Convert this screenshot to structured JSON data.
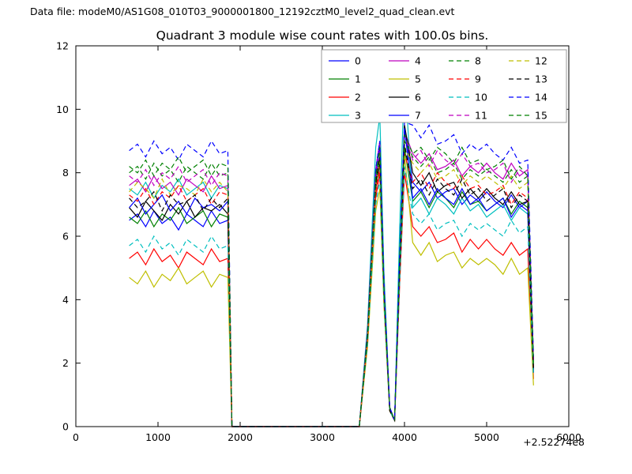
{
  "figure": {
    "datafile_label": "Data file: modeM0/AS1G08_010T03_9000001800_12192cztM0_level2_quad_clean.evt",
    "title": "Quadrant 3 module wise count rates with 100.0s bins."
  },
  "chart_data": {
    "type": "line",
    "title": "Quadrant 3 module wise count rates with 100.0s bins.",
    "xlabel": "",
    "ylabel": "",
    "xlim": [
      0,
      6000
    ],
    "ylim": [
      0,
      12
    ],
    "xticks": [
      0,
      1000,
      2000,
      3000,
      4000,
      5000,
      6000
    ],
    "yticks": [
      0,
      2,
      4,
      6,
      8,
      10,
      12
    ],
    "x_offset": "+2.52274e8",
    "grid": false,
    "legend": {
      "position": "upper right",
      "columns": 4
    },
    "x": [
      650,
      750,
      850,
      950,
      1050,
      1150,
      1250,
      1350,
      1450,
      1550,
      1650,
      1750,
      1850,
      1900,
      2500,
      3100,
      3450,
      3550,
      3650,
      3700,
      3750,
      3820,
      3880,
      3940,
      4000,
      4100,
      4200,
      4300,
      4400,
      4500,
      4600,
      4700,
      4800,
      4900,
      5000,
      5100,
      5200,
      5300,
      5400,
      5500,
      5570
    ],
    "series": [
      {
        "name": "0",
        "color": "#0000ff",
        "dash": false,
        "y": [
          6.5,
          6.7,
          6.3,
          6.8,
          6.4,
          6.6,
          6.2,
          6.7,
          6.5,
          6.3,
          6.8,
          6.4,
          6.5,
          0,
          0,
          0,
          0,
          3.0,
          8.1,
          9.0,
          4.5,
          0.6,
          0.2,
          5.2,
          9.5,
          7.7,
          7.4,
          7.7,
          7.2,
          7.4,
          7.5,
          7.0,
          7.3,
          7.1,
          7.4,
          7.1,
          6.9,
          7.3,
          6.9,
          7.1,
          1.8
        ]
      },
      {
        "name": "1",
        "color": "#008000",
        "dash": false,
        "y": [
          6.6,
          6.4,
          6.8,
          6.3,
          6.7,
          6.5,
          6.9,
          6.4,
          6.6,
          6.8,
          6.3,
          6.7,
          6.6,
          0,
          0,
          0,
          0,
          2.8,
          7.7,
          8.5,
          4.3,
          0.5,
          0.2,
          4.8,
          8.8,
          7.1,
          7.4,
          6.9,
          7.4,
          7.2,
          6.9,
          7.4,
          7.0,
          7.1,
          6.8,
          7.0,
          7.2,
          6.7,
          7.1,
          6.9,
          1.7
        ]
      },
      {
        "name": "2",
        "color": "#ff0000",
        "dash": false,
        "y": [
          5.3,
          5.5,
          5.1,
          5.6,
          5.2,
          5.4,
          5.0,
          5.5,
          5.3,
          5.1,
          5.6,
          5.2,
          5.3,
          0,
          0,
          0,
          0,
          2.6,
          7.2,
          8.0,
          4.0,
          0.5,
          0.2,
          4.4,
          8.0,
          6.3,
          6.0,
          6.3,
          5.8,
          5.9,
          6.1,
          5.5,
          5.9,
          5.6,
          5.9,
          5.6,
          5.4,
          5.8,
          5.4,
          5.6,
          1.5
        ]
      },
      {
        "name": "3",
        "color": "#00bfbf",
        "dash": false,
        "y": [
          7.5,
          7.3,
          7.7,
          7.2,
          7.6,
          7.4,
          7.8,
          7.3,
          7.5,
          7.7,
          7.2,
          7.6,
          7.5,
          0,
          0,
          0,
          0,
          3.2,
          8.8,
          9.8,
          4.9,
          0.6,
          0.2,
          6.2,
          11.2,
          6.9,
          7.2,
          6.7,
          7.2,
          7.0,
          6.7,
          7.2,
          6.8,
          7.0,
          6.6,
          6.8,
          7.0,
          6.5,
          6.9,
          6.7,
          1.9
        ]
      },
      {
        "name": "4",
        "color": "#bf00bf",
        "dash": false,
        "y": [
          7.6,
          7.8,
          7.4,
          7.9,
          7.5,
          7.7,
          7.3,
          7.8,
          7.6,
          7.4,
          7.9,
          7.5,
          7.6,
          0,
          0,
          0,
          0,
          3.0,
          8.1,
          9.0,
          4.5,
          0.6,
          0.2,
          5.1,
          9.3,
          8.6,
          8.3,
          8.6,
          8.1,
          8.2,
          8.4,
          7.9,
          8.2,
          8.0,
          8.3,
          8.0,
          7.8,
          8.3,
          7.9,
          8.1,
          2.0
        ]
      },
      {
        "name": "5",
        "color": "#bfbf00",
        "dash": false,
        "y": [
          4.7,
          4.5,
          4.9,
          4.4,
          4.8,
          4.6,
          5.0,
          4.5,
          4.7,
          4.9,
          4.4,
          4.8,
          4.7,
          0,
          0,
          0,
          0,
          2.5,
          6.8,
          7.5,
          3.8,
          0.5,
          0.2,
          4.7,
          8.6,
          5.8,
          5.4,
          5.8,
          5.2,
          5.4,
          5.5,
          5.0,
          5.3,
          5.1,
          5.3,
          5.1,
          4.8,
          5.3,
          4.8,
          5.0,
          1.3
        ]
      },
      {
        "name": "6",
        "color": "#000000",
        "dash": false,
        "y": [
          6.9,
          6.6,
          7.1,
          6.8,
          6.5,
          7.0,
          6.7,
          7.1,
          6.6,
          6.9,
          6.8,
          7.0,
          6.7,
          0,
          0,
          0,
          0,
          2.8,
          7.5,
          8.3,
          4.2,
          0.5,
          0.2,
          5.2,
          9.5,
          8.0,
          7.6,
          8.0,
          7.4,
          7.6,
          7.7,
          7.2,
          7.5,
          7.2,
          7.5,
          7.2,
          7.0,
          7.4,
          7.0,
          7.1,
          1.8
        ]
      },
      {
        "name": "7",
        "color": "#0000ff",
        "dash": false,
        "y": [
          6.9,
          7.2,
          6.7,
          7.0,
          7.3,
          6.8,
          7.1,
          6.7,
          7.2,
          6.9,
          7.0,
          6.8,
          7.1,
          0,
          0,
          0,
          0,
          2.9,
          7.9,
          8.8,
          4.4,
          0.6,
          0.2,
          5.1,
          9.4,
          7.2,
          7.5,
          7.0,
          7.5,
          7.2,
          7.0,
          7.5,
          7.0,
          7.2,
          6.8,
          7.0,
          7.2,
          6.6,
          7.0,
          6.8,
          1.7
        ]
      },
      {
        "name": "8",
        "color": "#008000",
        "dash": true,
        "y": [
          8.0,
          8.2,
          7.8,
          8.3,
          7.9,
          8.1,
          7.7,
          8.2,
          8.0,
          7.8,
          8.3,
          7.9,
          8.0,
          0,
          0,
          0,
          0,
          2.9,
          7.7,
          8.5,
          4.3,
          0.5,
          0.2,
          5.0,
          9.0,
          8.5,
          8.2,
          8.5,
          8.0,
          8.1,
          8.3,
          7.8,
          8.1,
          7.9,
          8.1,
          7.9,
          7.7,
          8.1,
          7.7,
          7.9,
          2.0
        ]
      },
      {
        "name": "9",
        "color": "#ff0000",
        "dash": true,
        "y": [
          7.3,
          7.1,
          7.5,
          7.0,
          7.4,
          7.2,
          7.6,
          7.1,
          7.3,
          7.5,
          7.0,
          7.4,
          7.3,
          0,
          0,
          0,
          0,
          2.7,
          7.4,
          8.2,
          4.1,
          0.5,
          0.2,
          4.7,
          8.6,
          7.7,
          8.0,
          7.5,
          8.0,
          7.7,
          7.5,
          7.9,
          7.5,
          7.6,
          7.3,
          7.4,
          7.6,
          7.0,
          7.4,
          7.2,
          1.9
        ]
      },
      {
        "name": "10",
        "color": "#00bfbf",
        "dash": true,
        "y": [
          5.7,
          5.9,
          5.5,
          6.0,
          5.6,
          5.8,
          5.4,
          5.9,
          5.7,
          5.5,
          6.0,
          5.6,
          5.7,
          0,
          0,
          0,
          0,
          2.6,
          7.0,
          7.8,
          3.9,
          0.5,
          0.2,
          4.5,
          8.2,
          6.7,
          6.4,
          6.7,
          6.2,
          6.4,
          6.5,
          6.0,
          6.4,
          6.2,
          6.4,
          6.2,
          6.0,
          6.5,
          6.1,
          6.3,
          1.6
        ]
      },
      {
        "name": "11",
        "color": "#bf00bf",
        "dash": true,
        "y": [
          7.9,
          7.7,
          8.1,
          7.6,
          8.0,
          7.8,
          8.2,
          7.7,
          7.9,
          8.1,
          7.6,
          8.0,
          7.9,
          0,
          0,
          0,
          0,
          2.9,
          7.8,
          8.7,
          4.4,
          0.6,
          0.2,
          5.1,
          9.2,
          8.4,
          8.7,
          8.2,
          8.7,
          8.4,
          8.2,
          8.6,
          8.2,
          8.3,
          8.0,
          8.1,
          8.3,
          7.7,
          8.1,
          7.9,
          2.1
        ]
      },
      {
        "name": "12",
        "color": "#bfbf00",
        "dash": true,
        "y": [
          7.4,
          7.7,
          7.5,
          7.2,
          7.8,
          7.3,
          7.6,
          7.5,
          7.3,
          7.8,
          7.4,
          7.7,
          7.4,
          0,
          0,
          0,
          0,
          2.8,
          7.6,
          8.4,
          4.2,
          0.5,
          0.2,
          4.9,
          8.8,
          8.3,
          8.0,
          8.3,
          7.8,
          7.9,
          8.1,
          7.6,
          7.9,
          7.7,
          7.9,
          7.7,
          7.5,
          7.9,
          7.5,
          7.7,
          1.9
        ]
      },
      {
        "name": "13",
        "color": "#000000",
        "dash": true,
        "y": [
          7.2,
          6.9,
          7.1,
          7.4,
          6.8,
          7.3,
          7.0,
          7.1,
          7.3,
          6.8,
          7.2,
          6.9,
          7.2,
          0,
          0,
          0,
          0,
          2.8,
          7.7,
          8.5,
          4.3,
          0.5,
          0.2,
          4.9,
          8.9,
          7.5,
          7.8,
          7.3,
          7.8,
          7.5,
          7.3,
          7.8,
          7.3,
          7.5,
          7.1,
          7.3,
          7.5,
          6.9,
          7.3,
          7.1,
          1.8
        ]
      },
      {
        "name": "14",
        "color": "#0000ff",
        "dash": true,
        "y": [
          8.7,
          8.9,
          8.5,
          9.0,
          8.6,
          8.8,
          8.4,
          8.9,
          8.7,
          8.5,
          9.0,
          8.6,
          8.7,
          0,
          0,
          0,
          0,
          3.0,
          8.1,
          9.0,
          4.5,
          0.6,
          0.2,
          5.3,
          9.6,
          9.5,
          9.1,
          9.5,
          8.9,
          9.0,
          9.2,
          8.6,
          8.9,
          8.7,
          8.9,
          8.6,
          8.4,
          8.8,
          8.3,
          8.4,
          2.2
        ]
      },
      {
        "name": "15",
        "color": "#008000",
        "dash": true,
        "y": [
          8.2,
          8.0,
          8.4,
          7.9,
          8.3,
          8.1,
          8.5,
          8.0,
          8.2,
          8.4,
          7.9,
          8.3,
          8.2,
          0,
          0,
          0,
          0,
          2.9,
          7.9,
          8.8,
          4.4,
          0.6,
          0.2,
          5.1,
          9.2,
          8.6,
          8.8,
          8.4,
          8.8,
          8.6,
          8.3,
          8.8,
          8.3,
          8.4,
          8.1,
          8.2,
          8.4,
          7.8,
          8.2,
          7.9,
          2.0
        ]
      }
    ]
  }
}
